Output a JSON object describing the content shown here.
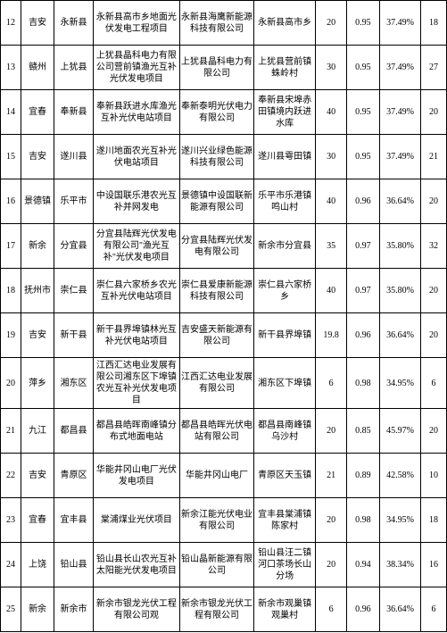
{
  "rows": [
    {
      "idx": "12",
      "city": "吉安",
      "county": "永新县",
      "project": "永新县高市乡地面光伏发电工程项目",
      "company": "永新县海鹰新能源科技有限公司",
      "location": "永新县高市乡",
      "v1": "20",
      "v2": "0.95",
      "v3": "37.49%",
      "v4": "18"
    },
    {
      "idx": "13",
      "city": "赣州",
      "county": "上犹县",
      "project": "上犹县晶科电力有限公司营前镇渔光互补光伏发电项目",
      "company": "上犹县晶科电力有限公司",
      "location": "上犹县营前镇蛛岭村",
      "v1": "30",
      "v2": "0.95",
      "v3": "37.49%",
      "v4": "27"
    },
    {
      "idx": "14",
      "city": "宜春",
      "county": "奉新县",
      "project": "奉新县跃进水库渔光互补光伏电站项目",
      "company": "奉新泰明光伏电力有限公司",
      "location": "奉新县宋埠赤田镇境内跃进水库",
      "v1": "40",
      "v2": "0.95",
      "v3": "37.49%",
      "v4": "20"
    },
    {
      "idx": "15",
      "city": "吉安",
      "county": "遂川县",
      "project": "遂川地面农光互补光伏电站项目",
      "company": "遂川兴业绿色能源科技有限公司",
      "location": "遂川县雩田镇",
      "v1": "30",
      "v2": "0.95",
      "v3": "37.49%",
      "v4": "21"
    },
    {
      "idx": "16",
      "city": "景德镇",
      "county": "乐平市",
      "project": "中设国联乐港农光互补并网发电",
      "company": "景德镇中设国联新能源有限公司",
      "location": "乐平市乐港镇鸣山村",
      "v1": "40",
      "v2": "0.96",
      "v3": "36.64%",
      "v4": "20"
    },
    {
      "idx": "17",
      "city": "新余",
      "county": "分宜县",
      "project": "分宜县陆辉光伏发电有限公司\"渔光互补\"光伏发电项目",
      "company": "分宜县陆辉光伏发电有限公司",
      "location": "新余市分宜县",
      "v1": "35",
      "v2": "0.97",
      "v3": "35.80%",
      "v4": "32"
    },
    {
      "idx": "18",
      "city": "抚州市",
      "county": "崇仁县",
      "project": "崇仁县六家桥乡农光互补光伏电站项目",
      "company": "崇仁县爱康新能源科技有限公司",
      "location": "崇仁县六家桥乡",
      "v1": "40",
      "v2": "0.97",
      "v3": "35.80%",
      "v4": "20"
    },
    {
      "idx": "19",
      "city": "吉安",
      "county": "新干县",
      "project": "新干县界埠镇林光互补光伏电站项目",
      "company": "吉安盛天新能源有限公司",
      "location": "新干县界埠镇",
      "v1": "19.8",
      "v2": "0.96",
      "v3": "36.64%",
      "v4": "20"
    },
    {
      "idx": "20",
      "city": "萍乡",
      "county": "湘东区",
      "project": "江西汇达电业发展有限公司湘东区下埠镇农光互补光伏发电项目",
      "company": "江西汇达电业发展有限公司",
      "location": "湘东区下埠镇",
      "v1": "6",
      "v2": "0.98",
      "v3": "34.95%",
      "v4": "6"
    },
    {
      "idx": "21",
      "city": "九江",
      "county": "都昌县",
      "project": "都昌县皓晖南峰镇分布式地面电站",
      "company": "都昌县皓晖光伏电站有限公司",
      "location": "都昌县南峰镇乌沙村",
      "v1": "20",
      "v2": "0.85",
      "v3": "45.97%",
      "v4": "20"
    },
    {
      "idx": "22",
      "city": "吉安",
      "county": "青原区",
      "project": "华能井冈山电厂光伏发电项目",
      "company": "华能井冈山电厂",
      "location": "青原区天玉镇",
      "v1": "21",
      "v2": "0.89",
      "v3": "42.58%",
      "v4": "10"
    },
    {
      "idx": "23",
      "city": "宜春",
      "county": "宜丰县",
      "project": "棠浦煤业光伏项目",
      "company": "新余江能光伏电业有限公司",
      "location": "宜丰县棠浦镇陈家村",
      "v1": "20",
      "v2": "0.98",
      "v3": "34.95%",
      "v4": "18"
    },
    {
      "idx": "24",
      "city": "上饶",
      "county": "铅山县",
      "project": "铅山县长山农光互补太阳能光伏发电项目",
      "company": "铅山晶新能源有限公司",
      "location": "铅山县汪二镇河口茶场长山分场",
      "v1": "20",
      "v2": "0.94",
      "v3": "38.34%",
      "v4": "16"
    },
    {
      "idx": "25",
      "city": "新余",
      "county": "新余市",
      "project": "新余市银龙光伏工程有限公司观",
      "company": "新余市银龙光伏工程有限公司",
      "location": "新余市观巢镇观巢村",
      "v1": "6",
      "v2": "0.96",
      "v3": "36.64%",
      "v4": "6"
    }
  ]
}
